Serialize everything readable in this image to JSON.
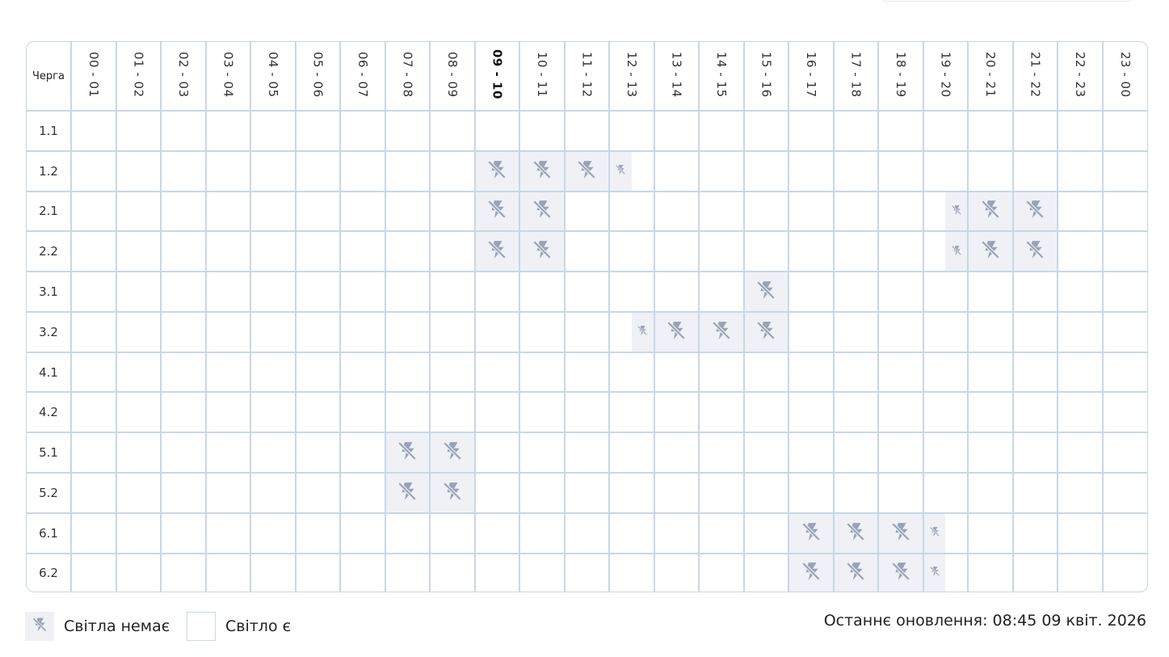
{
  "header_col": "Черга",
  "current_hour": "09 - 10",
  "hours": [
    "00 - 01",
    "01 - 02",
    "02 - 03",
    "03 - 04",
    "04 - 05",
    "05 - 06",
    "06 - 07",
    "07 - 08",
    "08 - 09",
    "09 - 10",
    "10 - 11",
    "11 - 12",
    "12 - 13",
    "13 - 14",
    "14 - 15",
    "15 - 16",
    "16 - 17",
    "17 - 18",
    "18 - 19",
    "19 - 20",
    "20 - 21",
    "21 - 22",
    "22 - 23",
    "23 - 00"
  ],
  "queues": [
    {
      "label": "1.1",
      "outages": {}
    },
    {
      "label": "1.2",
      "outages": {
        "9": "full",
        "10": "full",
        "11": "full",
        "12": "first"
      }
    },
    {
      "label": "2.1",
      "outages": {
        "9": "full",
        "10": "full",
        "19": "second",
        "20": "full",
        "21": "full"
      }
    },
    {
      "label": "2.2",
      "outages": {
        "9": "full",
        "10": "full",
        "19": "second",
        "20": "full",
        "21": "full"
      }
    },
    {
      "label": "3.1",
      "outages": {
        "15": "full"
      }
    },
    {
      "label": "3.2",
      "outages": {
        "12": "second",
        "13": "full",
        "14": "full",
        "15": "full"
      }
    },
    {
      "label": "4.1",
      "outages": {}
    },
    {
      "label": "4.2",
      "outages": {}
    },
    {
      "label": "5.1",
      "outages": {
        "7": "full",
        "8": "full"
      }
    },
    {
      "label": "5.2",
      "outages": {
        "7": "full",
        "8": "full"
      }
    },
    {
      "label": "6.1",
      "outages": {
        "16": "full",
        "17": "full",
        "18": "full",
        "19": "first"
      }
    },
    {
      "label": "6.2",
      "outages": {
        "16": "full",
        "17": "full",
        "18": "full",
        "19": "first"
      }
    }
  ],
  "legend": {
    "no_power": "Світла немає",
    "power": "Світло є",
    "no_power_icon": "no-power-icon"
  },
  "updated": "Останнє оновлення: 08:45 09 квіт. 2026",
  "colors": {
    "outage_bg": "#eff1f6",
    "icon": "#9aa3b5",
    "grid": "#c9d7e4"
  }
}
